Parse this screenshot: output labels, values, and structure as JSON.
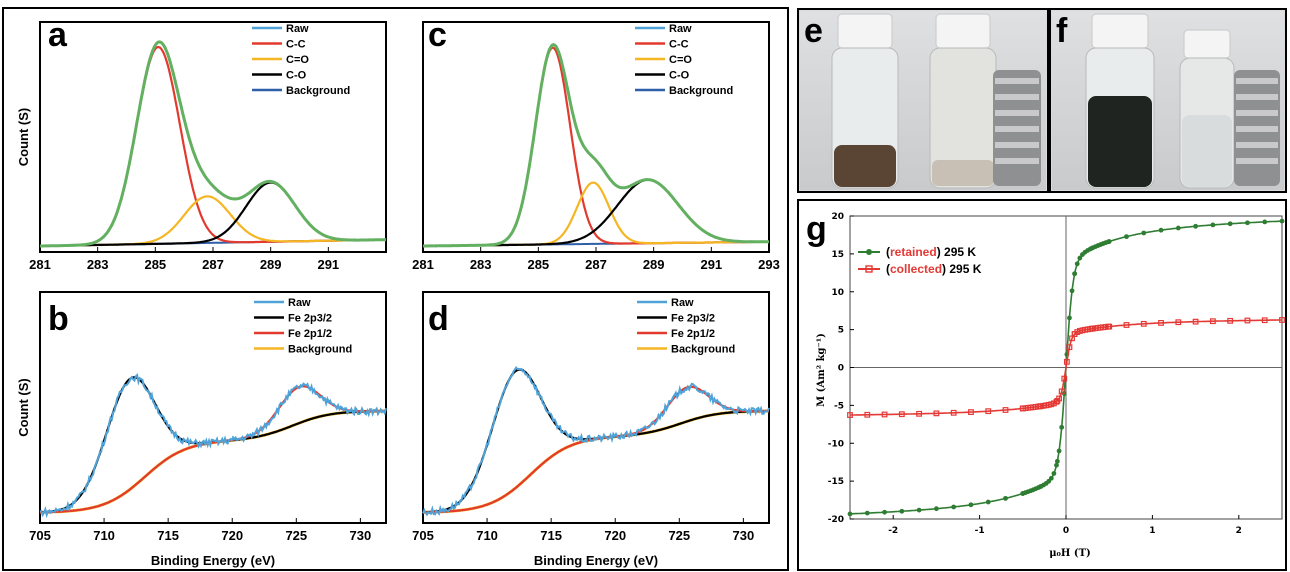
{
  "panel_labels": [
    "a",
    "b",
    "c",
    "d",
    "e",
    "f",
    "g"
  ],
  "chart_data": [
    {
      "id": "a",
      "type": "line",
      "title": "",
      "xlabel": "",
      "ylabel": "Count (S)",
      "xlim": [
        281,
        293
      ],
      "xticks": [
        281,
        283,
        285,
        287,
        289,
        291,
        293
      ],
      "xtick_labels": [
        "281",
        "283",
        "285",
        "287",
        "289",
        "291"
      ],
      "legend": [
        "Raw",
        "C-C",
        "C=O",
        "C-O",
        "Background"
      ],
      "legend_colors": [
        "#4fa3d8",
        "#e23a2e",
        "#f5b623",
        "#000000",
        "#2f5fa8"
      ],
      "series": [
        {
          "name": "C-C",
          "type": "gauss",
          "center": 285.1,
          "amp": 0.93,
          "sigma": 0.75
        },
        {
          "name": "C=O",
          "type": "gauss",
          "center": 286.8,
          "amp": 0.22,
          "sigma": 0.8
        },
        {
          "name": "C-O",
          "type": "gauss",
          "center": 289.0,
          "amp": 0.28,
          "sigma": 0.85
        },
        {
          "name": "Background",
          "type": "bg",
          "start": 0.0,
          "end": 0.03
        }
      ]
    },
    {
      "id": "b",
      "type": "line",
      "title": "",
      "xlabel": "Binding Energy (eV)",
      "ylabel": "Count (S)",
      "xlim": [
        705,
        732
      ],
      "xticks": [
        705,
        710,
        715,
        720,
        725,
        730
      ],
      "xtick_labels": [
        "705",
        "710",
        "715",
        "720",
        "725",
        "730"
      ],
      "legend": [
        "Raw",
        "Fe 2p3/2",
        "Fe 2p1/2",
        "Background"
      ],
      "legend_colors": [
        "#4fa3d8",
        "#000000",
        "#e23a2e",
        "#f5b623"
      ],
      "series": [
        {
          "name": "Fe 2p3/2",
          "type": "gauss",
          "center": 712.0,
          "amp": 0.52,
          "sigma": 1.9
        },
        {
          "name": "Fe 2p1/2",
          "type": "gauss",
          "center": 725.2,
          "amp": 0.17,
          "sigma": 1.6
        },
        {
          "name": "Background",
          "type": "shirley",
          "low": 0.02,
          "mid": 0.36,
          "high": 0.5
        }
      ]
    },
    {
      "id": "c",
      "type": "line",
      "title": "",
      "xlabel": "",
      "ylabel": "",
      "xlim": [
        281,
        293
      ],
      "xticks": [
        281,
        283,
        285,
        287,
        289,
        291,
        293
      ],
      "xtick_labels": [
        "281",
        "283",
        "285",
        "287",
        "289",
        "291",
        "293"
      ],
      "legend": [
        "Raw",
        "C-C",
        "C=O",
        "C-O",
        "Background"
      ],
      "legend_colors": [
        "#4fa3d8",
        "#e23a2e",
        "#f5b623",
        "#000000",
        "#2f5fa8"
      ],
      "series": [
        {
          "name": "C-C",
          "type": "gauss",
          "center": 285.5,
          "amp": 0.93,
          "sigma": 0.6
        },
        {
          "name": "C=O",
          "type": "gauss",
          "center": 286.9,
          "amp": 0.29,
          "sigma": 0.55
        },
        {
          "name": "C-O",
          "type": "gauss",
          "center": 288.8,
          "amp": 0.3,
          "sigma": 1.05
        },
        {
          "name": "Background",
          "type": "bg",
          "start": 0.0,
          "end": 0.02
        }
      ]
    },
    {
      "id": "d",
      "type": "line",
      "title": "",
      "xlabel": "Binding Energy (eV)",
      "ylabel": "",
      "xlim": [
        705,
        732
      ],
      "xticks": [
        705,
        710,
        715,
        720,
        725,
        730
      ],
      "xtick_labels": [
        "705",
        "710",
        "715",
        "720",
        "725",
        "730"
      ],
      "legend": [
        "Raw",
        "Fe 2p3/2",
        "Fe 2p1/2",
        "Background"
      ],
      "legend_colors": [
        "#4fa3d8",
        "#000000",
        "#e23a2e",
        "#f5b623"
      ],
      "series": [
        {
          "name": "Fe 2p3/2",
          "type": "gauss",
          "center": 712.2,
          "amp": 0.55,
          "sigma": 1.9
        },
        {
          "name": "Fe 2p1/2",
          "type": "gauss",
          "center": 725.6,
          "amp": 0.16,
          "sigma": 1.6
        },
        {
          "name": "Background",
          "type": "shirley",
          "low": 0.02,
          "mid": 0.38,
          "high": 0.5
        }
      ]
    },
    {
      "id": "g",
      "type": "line",
      "title": "",
      "xlabel": "μ₀H (T)",
      "ylabel": "M (Am² kg⁻¹)",
      "xlim": [
        -2.5,
        2.5
      ],
      "ylim": [
        -20,
        20
      ],
      "xticks": [
        -2,
        -1,
        0,
        1,
        2
      ],
      "yticks": [
        20,
        15,
        10,
        5,
        0,
        -5,
        -10,
        -15,
        -20
      ],
      "legend": [
        "(retained) 295 K",
        "(collected) 295 K"
      ],
      "legend_parts": [
        [
          "(",
          "retained",
          ") 295 K"
        ],
        [
          "(",
          "collected",
          ") 295 K"
        ]
      ],
      "legend_colors": [
        "#2e7d32",
        "#e53935"
      ],
      "series": [
        {
          "name": "(retained) 295 K",
          "ms": 19.4,
          "h0": 0.08,
          "x": [
            -2.5,
            -2,
            -1.5,
            -1,
            -0.5,
            -0.2,
            -0.1,
            0,
            0.1,
            0.2,
            0.5,
            1,
            1.5,
            2,
            2.5
          ],
          "y": [
            -19.4,
            -18.9,
            -18.1,
            -16.9,
            -15.0,
            -12.0,
            -8.0,
            0,
            8.0,
            12.0,
            15.0,
            16.9,
            18.1,
            18.9,
            19.4
          ]
        },
        {
          "name": "(collected) 295 K",
          "ms": 6.3,
          "h0": 0.06,
          "x": [
            -2.5,
            -2,
            -1.5,
            -1,
            -0.5,
            -0.2,
            -0.1,
            0,
            0.1,
            0.2,
            0.5,
            1,
            1.5,
            2,
            2.5
          ],
          "y": [
            -6.3,
            -6.1,
            -5.8,
            -5.5,
            -5.0,
            -3.8,
            -2.6,
            0,
            2.6,
            3.8,
            5.0,
            5.5,
            5.8,
            6.1,
            6.3
          ]
        }
      ]
    }
  ],
  "colors": {
    "raw": "#4fa3d8",
    "envelope": "#63b060",
    "cc": "#e23a2e",
    "co_double": "#f5b623",
    "co": "#000000",
    "background_c": "#2f5fa8",
    "fe_bg": "#f5b623",
    "retained": "#2e7d32",
    "collected": "#e53935",
    "highlight_text": "#e53935"
  }
}
